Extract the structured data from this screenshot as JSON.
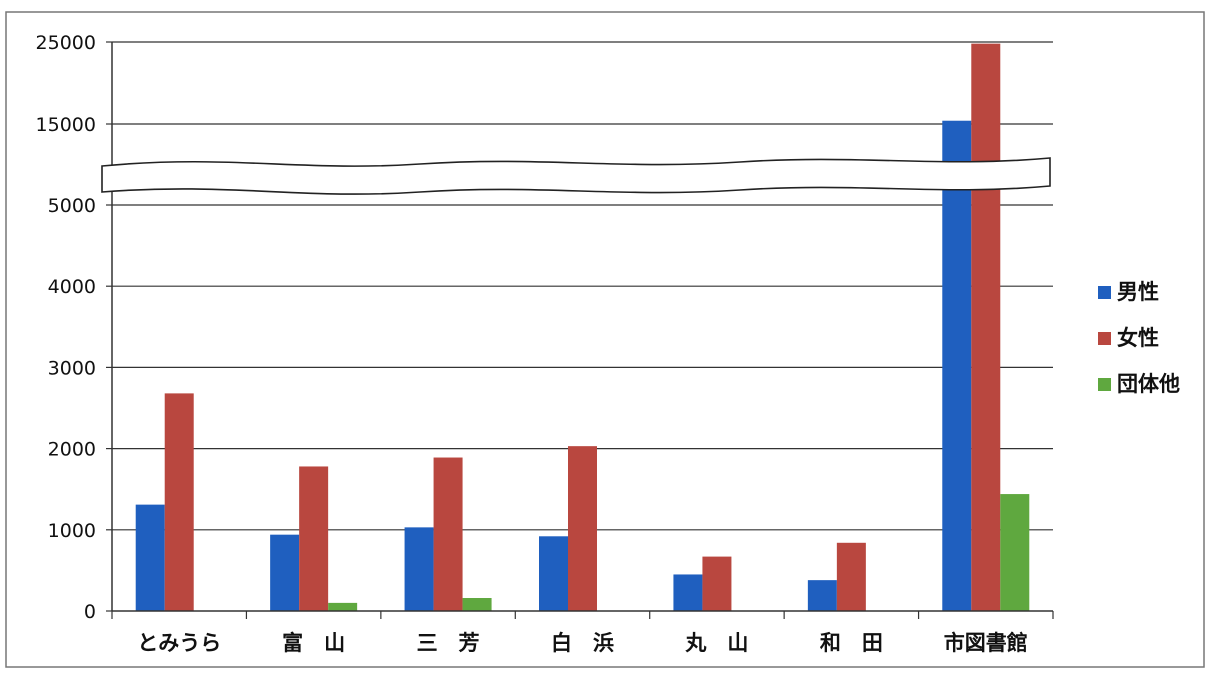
{
  "chart_data": {
    "type": "bar",
    "title": "",
    "xlabel": "",
    "ylabel": "",
    "categories": [
      "とみうら",
      "富　山",
      "三　芳",
      "白　浜",
      "丸　山",
      "和　田",
      "市図書館"
    ],
    "series": [
      {
        "name": "男性",
        "color": "#1f5fbf",
        "values": [
          1310,
          940,
          1030,
          920,
          450,
          380,
          15400
        ]
      },
      {
        "name": "女性",
        "color": "#b9473f",
        "values": [
          2680,
          1780,
          1890,
          2030,
          670,
          840,
          24800
        ]
      },
      {
        "name": "団体他",
        "color": "#5fa83f",
        "values": [
          0,
          100,
          160,
          0,
          0,
          0,
          1440
        ]
      }
    ],
    "axis": {
      "y_lower_range": [
        0,
        5000
      ],
      "y_upper_range": [
        15000,
        25000
      ],
      "y_ticks": [
        "25000",
        "15000",
        "5000",
        "4000",
        "3000",
        "2000",
        "1000",
        "0"
      ],
      "axis_break": true
    },
    "grid": true,
    "legend_position": "right"
  }
}
